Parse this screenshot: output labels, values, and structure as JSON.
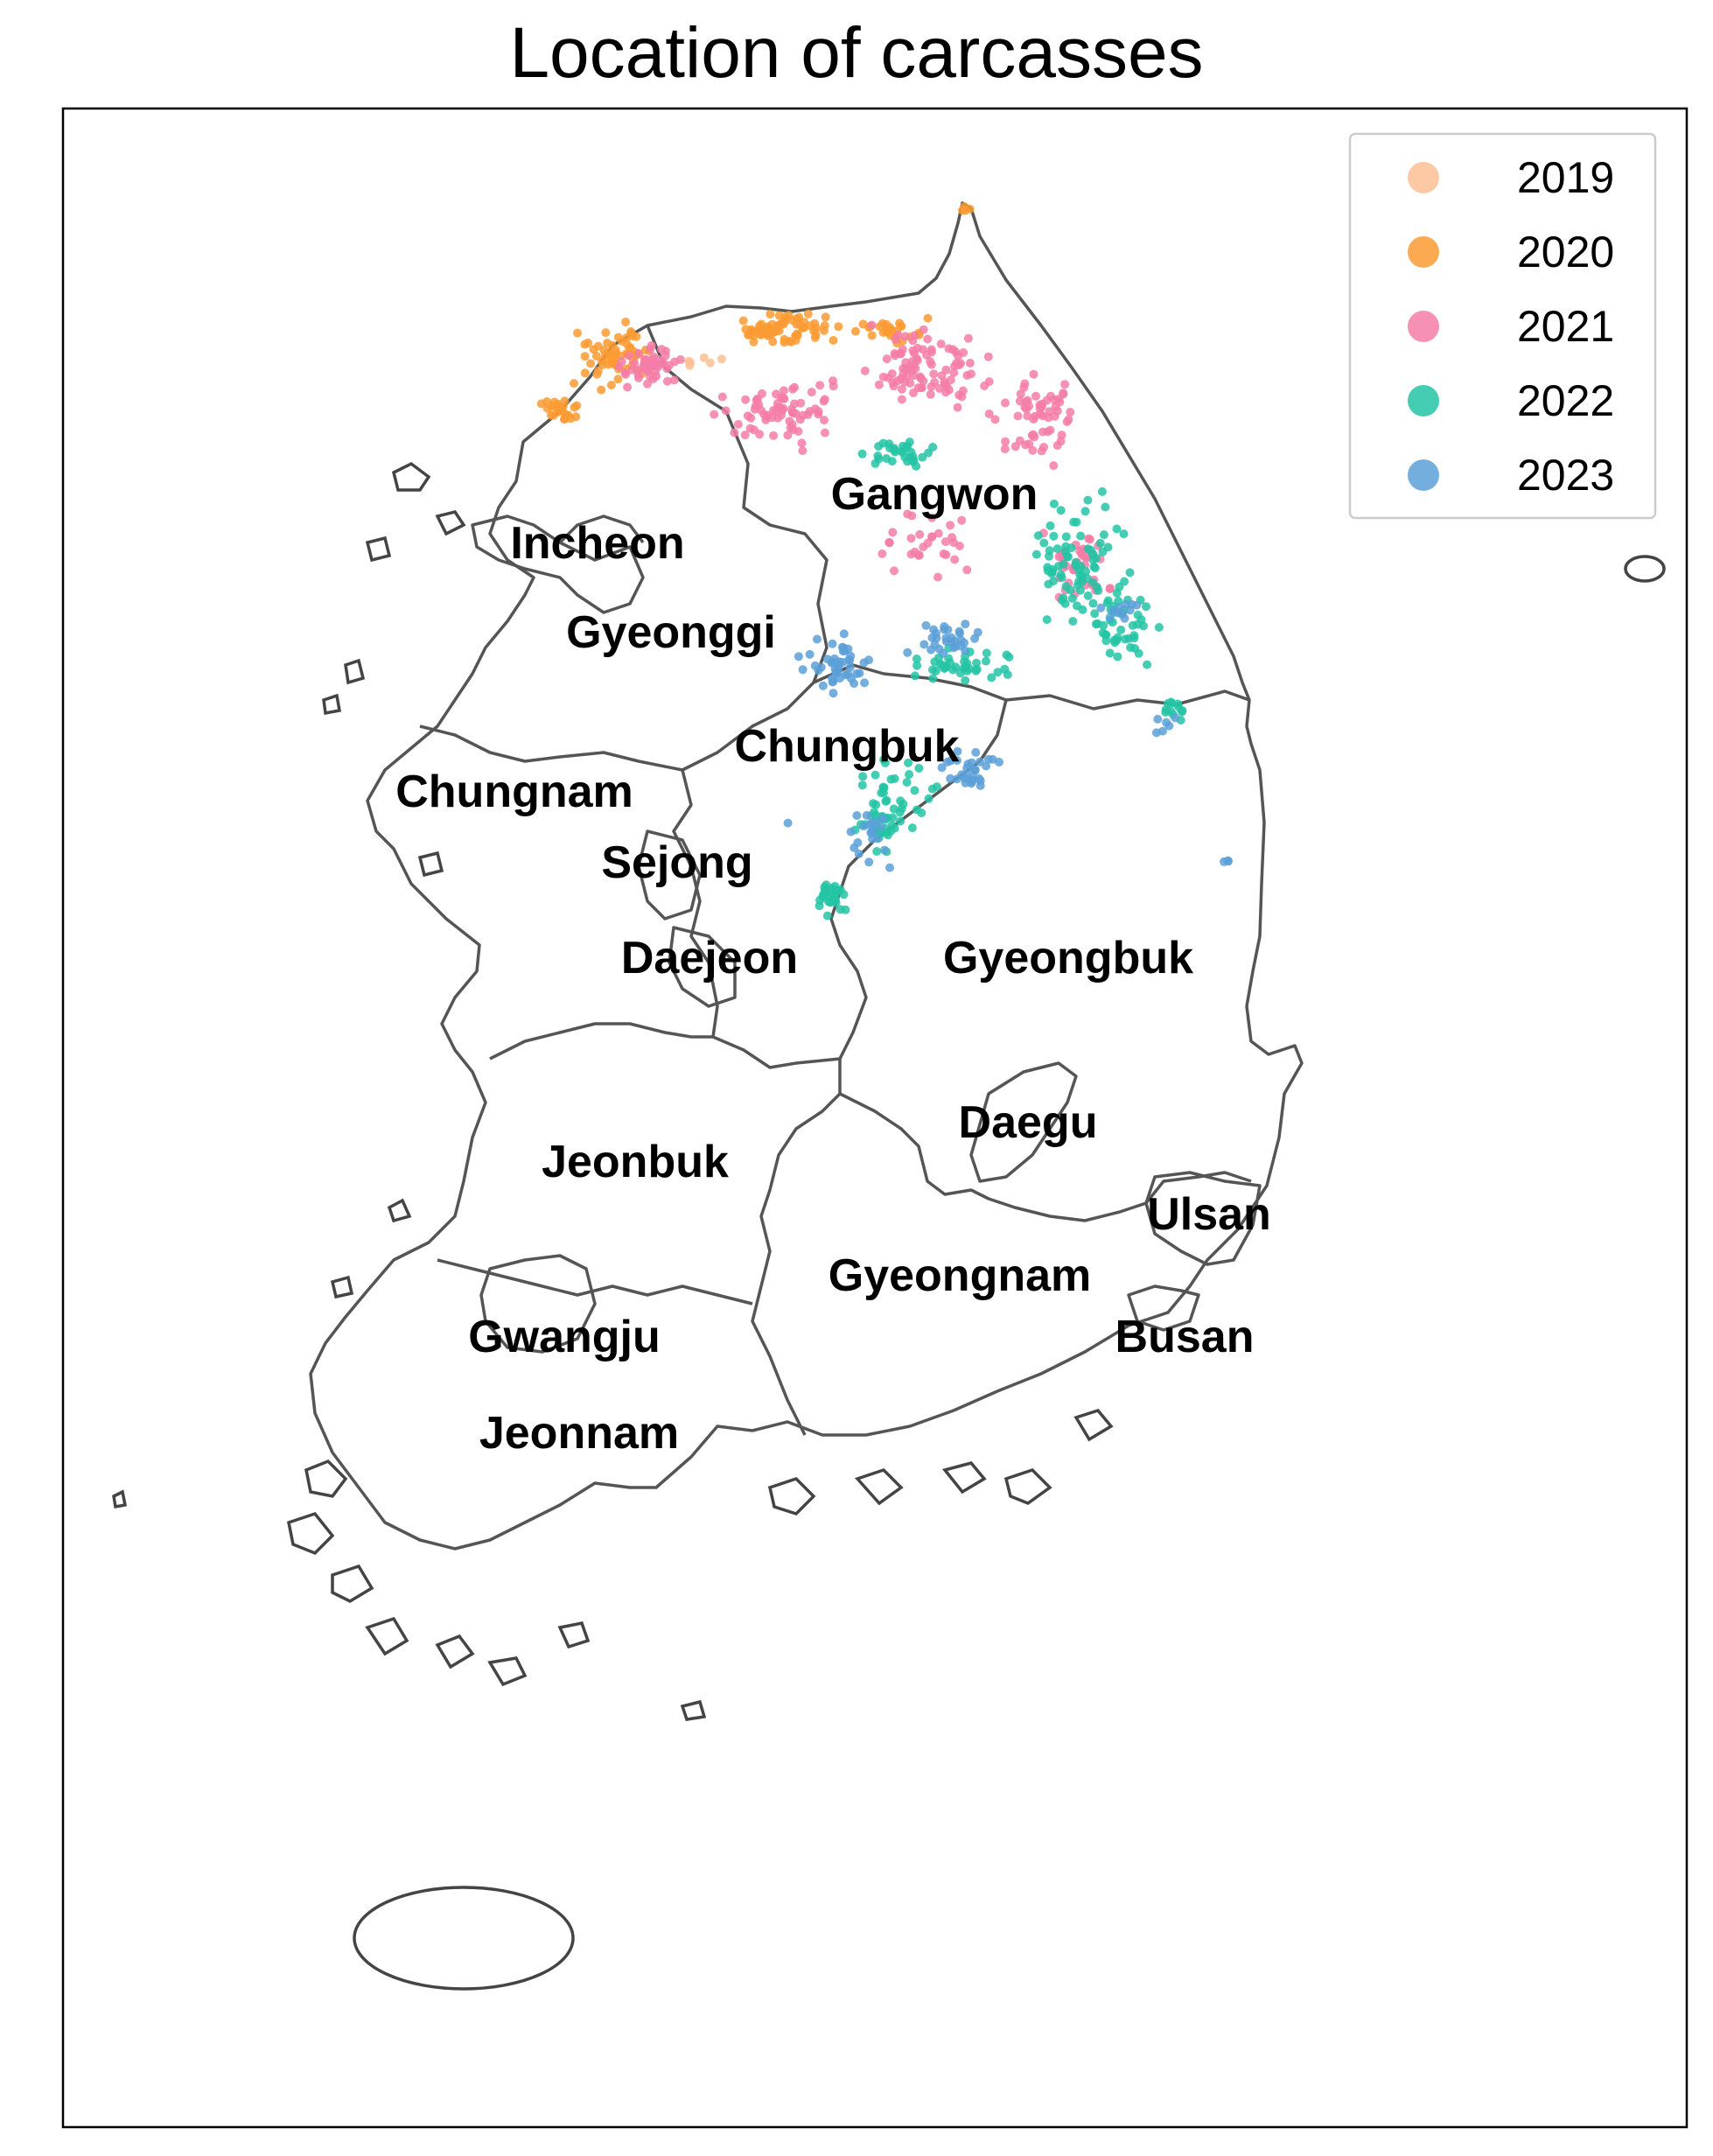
{
  "title": "Location of carcasses",
  "legend": {
    "items": [
      {
        "label": "2019",
        "color": "#fdbf94"
      },
      {
        "label": "2020",
        "color": "#fb9b32"
      },
      {
        "label": "2021",
        "color": "#f47ca7"
      },
      {
        "label": "2022",
        "color": "#23c4a4"
      },
      {
        "label": "2023",
        "color": "#5ba0d8"
      }
    ]
  },
  "regions": [
    {
      "key": "gangwon",
      "label": "Gangwon"
    },
    {
      "key": "incheon",
      "label": "Incheon"
    },
    {
      "key": "gyeonggi",
      "label": "Gyeonggi"
    },
    {
      "key": "chungbuk",
      "label": "Chungbuk"
    },
    {
      "key": "chungnam",
      "label": "Chungnam"
    },
    {
      "key": "sejong",
      "label": "Sejong"
    },
    {
      "key": "daejeon",
      "label": "Daejeon"
    },
    {
      "key": "gyeongbuk",
      "label": "Gyeongbuk"
    },
    {
      "key": "daegu",
      "label": "Daegu"
    },
    {
      "key": "jeonbuk",
      "label": "Jeonbuk"
    },
    {
      "key": "ulsan",
      "label": "Ulsan"
    },
    {
      "key": "gyeongnam",
      "label": "Gyeongnam"
    },
    {
      "key": "gwangju",
      "label": "Gwangju"
    },
    {
      "key": "busan",
      "label": "Busan"
    },
    {
      "key": "jeonnam",
      "label": "Jeonnam"
    }
  ],
  "colors": {
    "border": "#555555",
    "frame": "#000000"
  }
}
